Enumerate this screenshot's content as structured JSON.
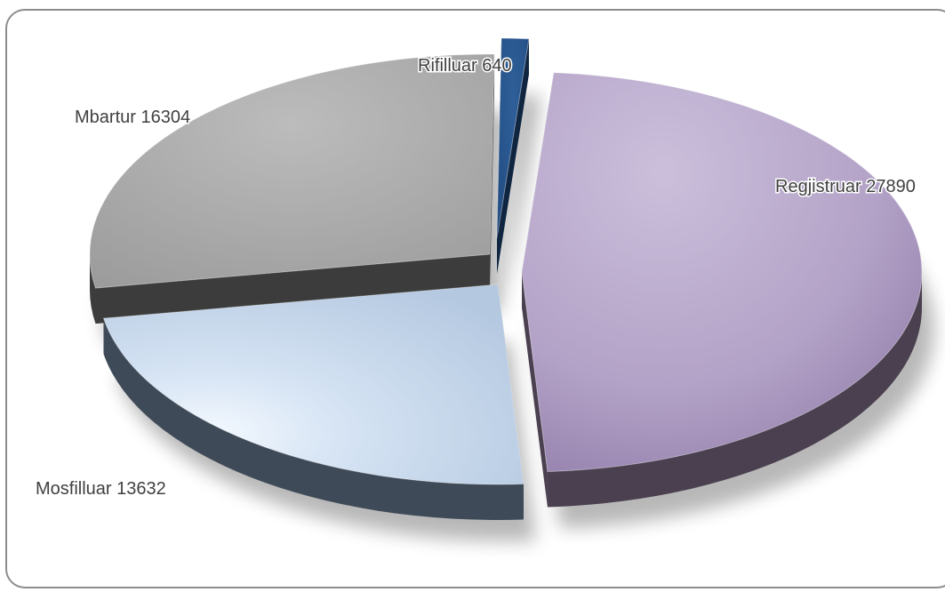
{
  "chart_data": {
    "type": "pie",
    "style": "3d-exploded",
    "title": "",
    "categories": [
      "Regjistruar",
      "Mosfilluar",
      "Mbartur",
      "Rifilluar"
    ],
    "values": [
      27890,
      13632,
      16304,
      640
    ],
    "labels": [
      "Regjistruar  27890",
      "Mosfilluar 13632",
      "Mbartur  16304",
      "Rifilluar  640"
    ],
    "colors": {
      "Regjistruar": "#b3a2c7",
      "Mosfilluar": "#b9cde5",
      "Mbartur": "#a6a6a6",
      "Rifilluar": "#1f497d"
    },
    "legend": "none"
  }
}
